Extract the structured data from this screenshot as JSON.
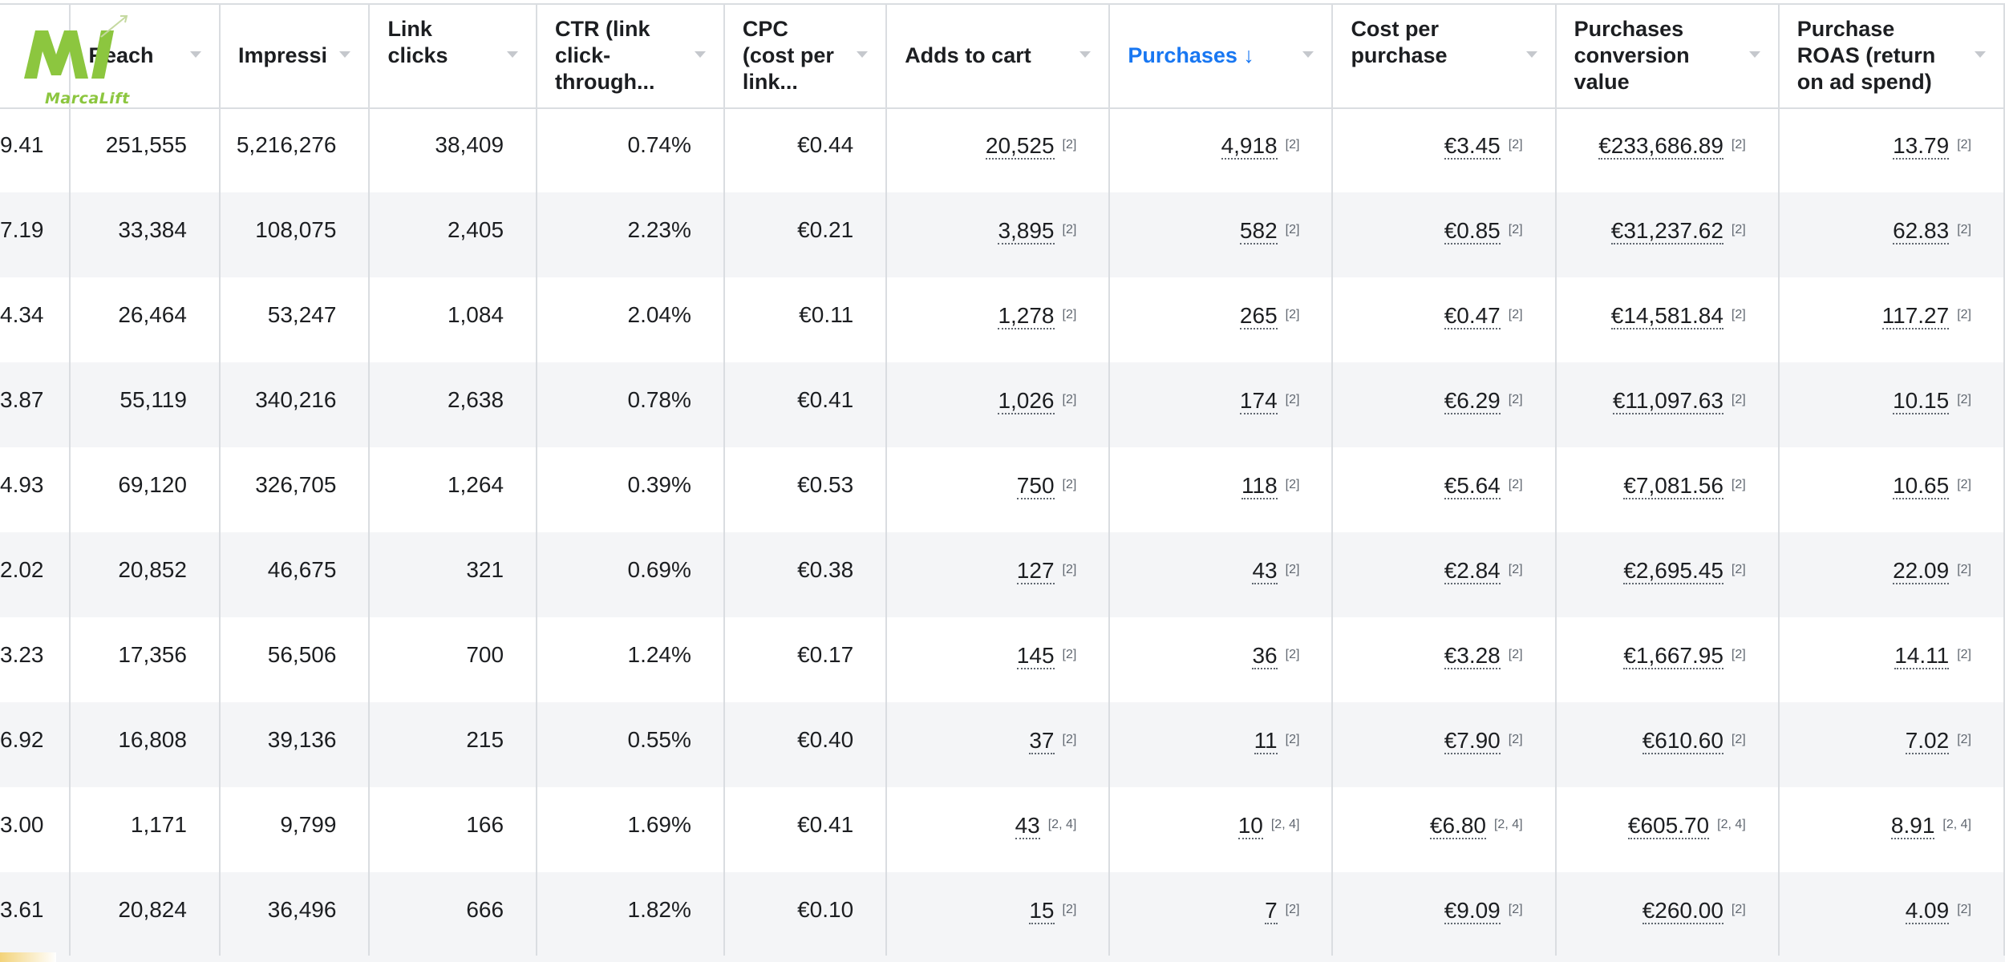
{
  "logo": {
    "text": "MarcaLift",
    "icon": "marcalift-logo-icon",
    "color": "#8cc63f"
  },
  "columns": [
    {
      "label": "",
      "sorted": false
    },
    {
      "label": "Reach",
      "sorted": false
    },
    {
      "label": "Impressi",
      "sorted": false
    },
    {
      "label": "Link clicks",
      "sorted": false
    },
    {
      "label": "CTR (link click-through...",
      "sorted": false
    },
    {
      "label": "CPC (cost per link...",
      "sorted": false
    },
    {
      "label": "Adds to cart",
      "sorted": false
    },
    {
      "label": "Purchases ↓",
      "sorted": true
    },
    {
      "label": "Cost per purchase",
      "sorted": false
    },
    {
      "label": "Purchases conversion value",
      "sorted": false
    },
    {
      "label": "Purchase ROAS (return on ad spend)",
      "sorted": false
    }
  ],
  "rows": [
    {
      "cells": [
        {
          "v": "9.41"
        },
        {
          "v": "251,555"
        },
        {
          "v": "5,216,276"
        },
        {
          "v": "38,409"
        },
        {
          "v": "0.74%"
        },
        {
          "v": "€0.44"
        },
        {
          "v": "20,525",
          "r": "[2]"
        },
        {
          "v": "4,918",
          "r": "[2]"
        },
        {
          "v": "€3.45",
          "r": "[2]"
        },
        {
          "v": "€233,686.89",
          "r": "[2]"
        },
        {
          "v": "13.79",
          "r": "[2]"
        }
      ]
    },
    {
      "cells": [
        {
          "v": "7.19"
        },
        {
          "v": "33,384"
        },
        {
          "v": "108,075"
        },
        {
          "v": "2,405"
        },
        {
          "v": "2.23%"
        },
        {
          "v": "€0.21"
        },
        {
          "v": "3,895",
          "r": "[2]"
        },
        {
          "v": "582",
          "r": "[2]"
        },
        {
          "v": "€0.85",
          "r": "[2]"
        },
        {
          "v": "€31,237.62",
          "r": "[2]"
        },
        {
          "v": "62.83",
          "r": "[2]"
        }
      ]
    },
    {
      "cells": [
        {
          "v": "4.34"
        },
        {
          "v": "26,464"
        },
        {
          "v": "53,247"
        },
        {
          "v": "1,084"
        },
        {
          "v": "2.04%"
        },
        {
          "v": "€0.11"
        },
        {
          "v": "1,278",
          "r": "[2]"
        },
        {
          "v": "265",
          "r": "[2]"
        },
        {
          "v": "€0.47",
          "r": "[2]"
        },
        {
          "v": "€14,581.84",
          "r": "[2]"
        },
        {
          "v": "117.27",
          "r": "[2]"
        }
      ]
    },
    {
      "cells": [
        {
          "v": "3.87"
        },
        {
          "v": "55,119"
        },
        {
          "v": "340,216"
        },
        {
          "v": "2,638"
        },
        {
          "v": "0.78%"
        },
        {
          "v": "€0.41"
        },
        {
          "v": "1,026",
          "r": "[2]"
        },
        {
          "v": "174",
          "r": "[2]"
        },
        {
          "v": "€6.29",
          "r": "[2]"
        },
        {
          "v": "€11,097.63",
          "r": "[2]"
        },
        {
          "v": "10.15",
          "r": "[2]"
        }
      ]
    },
    {
      "cells": [
        {
          "v": "4.93"
        },
        {
          "v": "69,120"
        },
        {
          "v": "326,705"
        },
        {
          "v": "1,264"
        },
        {
          "v": "0.39%"
        },
        {
          "v": "€0.53"
        },
        {
          "v": "750",
          "r": "[2]"
        },
        {
          "v": "118",
          "r": "[2]"
        },
        {
          "v": "€5.64",
          "r": "[2]"
        },
        {
          "v": "€7,081.56",
          "r": "[2]"
        },
        {
          "v": "10.65",
          "r": "[2]"
        }
      ]
    },
    {
      "cells": [
        {
          "v": "2.02"
        },
        {
          "v": "20,852"
        },
        {
          "v": "46,675"
        },
        {
          "v": "321"
        },
        {
          "v": "0.69%"
        },
        {
          "v": "€0.38"
        },
        {
          "v": "127",
          "r": "[2]"
        },
        {
          "v": "43",
          "r": "[2]"
        },
        {
          "v": "€2.84",
          "r": "[2]"
        },
        {
          "v": "€2,695.45",
          "r": "[2]"
        },
        {
          "v": "22.09",
          "r": "[2]"
        }
      ]
    },
    {
      "cells": [
        {
          "v": "3.23"
        },
        {
          "v": "17,356"
        },
        {
          "v": "56,506"
        },
        {
          "v": "700"
        },
        {
          "v": "1.24%"
        },
        {
          "v": "€0.17"
        },
        {
          "v": "145",
          "r": "[2]"
        },
        {
          "v": "36",
          "r": "[2]"
        },
        {
          "v": "€3.28",
          "r": "[2]"
        },
        {
          "v": "€1,667.95",
          "r": "[2]"
        },
        {
          "v": "14.11",
          "r": "[2]"
        }
      ]
    },
    {
      "cells": [
        {
          "v": "6.92"
        },
        {
          "v": "16,808"
        },
        {
          "v": "39,136"
        },
        {
          "v": "215"
        },
        {
          "v": "0.55%"
        },
        {
          "v": "€0.40"
        },
        {
          "v": "37",
          "r": "[2]"
        },
        {
          "v": "11",
          "r": "[2]"
        },
        {
          "v": "€7.90",
          "r": "[2]"
        },
        {
          "v": "€610.60",
          "r": "[2]"
        },
        {
          "v": "7.02",
          "r": "[2]"
        }
      ]
    },
    {
      "cells": [
        {
          "v": "3.00"
        },
        {
          "v": "1,171"
        },
        {
          "v": "9,799"
        },
        {
          "v": "166"
        },
        {
          "v": "1.69%"
        },
        {
          "v": "€0.41"
        },
        {
          "v": "43",
          "r": "[2, 4]"
        },
        {
          "v": "10",
          "r": "[2, 4]"
        },
        {
          "v": "€6.80",
          "r": "[2, 4]"
        },
        {
          "v": "€605.70",
          "r": "[2, 4]"
        },
        {
          "v": "8.91",
          "r": "[2, 4]"
        }
      ]
    },
    {
      "cells": [
        {
          "v": "3.61"
        },
        {
          "v": "20,824"
        },
        {
          "v": "36,496"
        },
        {
          "v": "666"
        },
        {
          "v": "1.82%"
        },
        {
          "v": "€0.10"
        },
        {
          "v": "15",
          "r": "[2]"
        },
        {
          "v": "7",
          "r": "[2]"
        },
        {
          "v": "€9.09",
          "r": "[2]"
        },
        {
          "v": "€260.00",
          "r": "[2]"
        },
        {
          "v": "4.09",
          "r": "[2]"
        }
      ]
    }
  ]
}
